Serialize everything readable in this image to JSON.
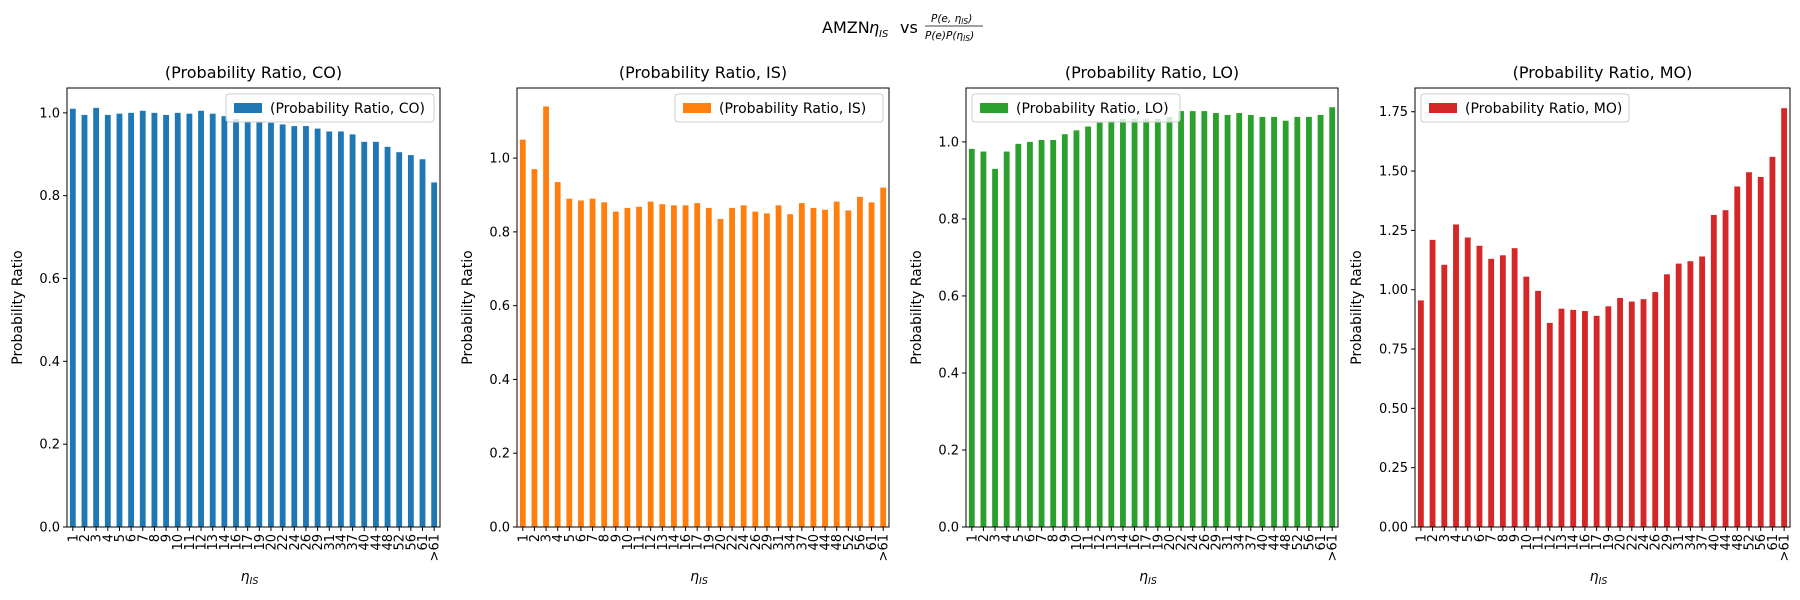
{
  "figure": {
    "title_prefix": "AMZN",
    "title_eta": "η",
    "title_eta_sub": "IS",
    "title_vs": "vs",
    "title_numerator": "P(e, η",
    "title_numerator_sub": "IS",
    "title_numerator_close": ")",
    "title_denominator": "P(e)P(η",
    "title_denominator_sub": "IS",
    "title_denominator_close": ")"
  },
  "chart_data": [
    {
      "type": "bar",
      "title": "(Probability Ratio, CO)",
      "xlabel": "η",
      "xlabel_sub": "IS",
      "ylabel": "Probability Ratio",
      "legend": "(Probability Ratio, CO)",
      "legend_position": "upper right",
      "color": "#1f77b4",
      "ylim": [
        0,
        1.06
      ],
      "yticks": [
        "0.0",
        "0.2",
        "0.4",
        "0.6",
        "0.8",
        "1.0"
      ],
      "ytick_values": [
        0,
        0.2,
        0.4,
        0.6,
        0.8,
        1.0
      ],
      "categories": [
        "1",
        "2",
        "3",
        "4",
        "5",
        "6",
        "7",
        "8",
        "9",
        "10",
        "11",
        "12",
        "13",
        "14",
        "16",
        "17",
        "19",
        "20",
        "22",
        "24",
        "26",
        "29",
        "31",
        "34",
        "37",
        "40",
        "44",
        "48",
        "52",
        "56",
        "61",
        ">61"
      ],
      "values": [
        1.01,
        0.995,
        1.012,
        0.995,
        0.998,
        1.0,
        1.005,
        1.0,
        0.995,
        1.0,
        0.998,
        1.005,
        0.998,
        0.992,
        0.985,
        0.98,
        0.978,
        0.976,
        0.972,
        0.968,
        0.968,
        0.962,
        0.955,
        0.955,
        0.948,
        0.93,
        0.93,
        0.918,
        0.905,
        0.898,
        0.888,
        0.832
      ]
    },
    {
      "type": "bar",
      "title": "(Probability Ratio, IS)",
      "xlabel": "η",
      "xlabel_sub": "IS",
      "ylabel": "Probability Ratio",
      "legend": "(Probability Ratio, IS)",
      "legend_position": "upper right",
      "color": "#ff7f0e",
      "ylim": [
        0,
        1.19
      ],
      "yticks": [
        "0.0",
        "0.2",
        "0.4",
        "0.6",
        "0.8",
        "1.0"
      ],
      "ytick_values": [
        0,
        0.2,
        0.4,
        0.6,
        0.8,
        1.0
      ],
      "categories": [
        "1",
        "2",
        "3",
        "4",
        "5",
        "6",
        "7",
        "8",
        "9",
        "10",
        "11",
        "12",
        "13",
        "14",
        "16",
        "17",
        "19",
        "20",
        "22",
        "24",
        "26",
        "29",
        "31",
        "34",
        "37",
        "40",
        "44",
        "48",
        "52",
        "56",
        "61",
        ">61"
      ],
      "values": [
        1.05,
        0.97,
        1.14,
        0.935,
        0.89,
        0.885,
        0.89,
        0.88,
        0.855,
        0.865,
        0.868,
        0.882,
        0.875,
        0.872,
        0.872,
        0.878,
        0.865,
        0.835,
        0.865,
        0.872,
        0.855,
        0.85,
        0.872,
        0.848,
        0.878,
        0.865,
        0.86,
        0.882,
        0.858,
        0.895,
        0.88,
        0.92
      ]
    },
    {
      "type": "bar",
      "title": "(Probability Ratio, LO)",
      "xlabel": "η",
      "xlabel_sub": "IS",
      "ylabel": "Probability Ratio",
      "legend": "(Probability Ratio, LO)",
      "legend_position": "upper left",
      "color": "#2ca02c",
      "ylim": [
        0,
        1.14
      ],
      "yticks": [
        "0.0",
        "0.2",
        "0.4",
        "0.6",
        "0.8",
        "1.0"
      ],
      "ytick_values": [
        0,
        0.2,
        0.4,
        0.6,
        0.8,
        1.0
      ],
      "categories": [
        "1",
        "2",
        "3",
        "4",
        "5",
        "6",
        "7",
        "8",
        "9",
        "10",
        "11",
        "12",
        "13",
        "14",
        "16",
        "17",
        "19",
        "20",
        "22",
        "24",
        "26",
        "29",
        "31",
        "34",
        "37",
        "40",
        "44",
        "48",
        "52",
        "56",
        "61",
        ">61"
      ],
      "values": [
        0.982,
        0.975,
        0.93,
        0.975,
        0.995,
        1.0,
        1.005,
        1.005,
        1.02,
        1.03,
        1.04,
        1.05,
        1.055,
        1.06,
        1.06,
        1.06,
        1.06,
        1.065,
        1.08,
        1.08,
        1.08,
        1.075,
        1.07,
        1.075,
        1.07,
        1.065,
        1.065,
        1.055,
        1.065,
        1.065,
        1.07,
        1.09
      ]
    },
    {
      "type": "bar",
      "title": "(Probability Ratio, MO)",
      "xlabel": "η",
      "xlabel_sub": "IS",
      "ylabel": "Probability Ratio",
      "legend": "(Probability Ratio, MO)",
      "legend_position": "upper left",
      "color": "#d62728",
      "ylim": [
        0,
        1.85
      ],
      "yticks": [
        "0.00",
        "0.25",
        "0.50",
        "0.75",
        "1.00",
        "1.25",
        "1.50",
        "1.75"
      ],
      "ytick_values": [
        0,
        0.25,
        0.5,
        0.75,
        1.0,
        1.25,
        1.5,
        1.75
      ],
      "categories": [
        "1",
        "2",
        "3",
        "4",
        "5",
        "6",
        "7",
        "8",
        "9",
        "10",
        "11",
        "12",
        "13",
        "14",
        "16",
        "17",
        "19",
        "20",
        "22",
        "24",
        "26",
        "29",
        "31",
        "34",
        "37",
        "40",
        "44",
        "48",
        "52",
        "56",
        "61",
        ">61"
      ],
      "values": [
        0.955,
        1.21,
        1.105,
        1.275,
        1.22,
        1.185,
        1.13,
        1.145,
        1.175,
        1.055,
        0.995,
        0.86,
        0.92,
        0.915,
        0.91,
        0.89,
        0.93,
        0.965,
        0.95,
        0.96,
        0.99,
        1.065,
        1.11,
        1.12,
        1.14,
        1.315,
        1.335,
        1.435,
        1.495,
        1.475,
        1.56,
        1.765
      ]
    }
  ]
}
